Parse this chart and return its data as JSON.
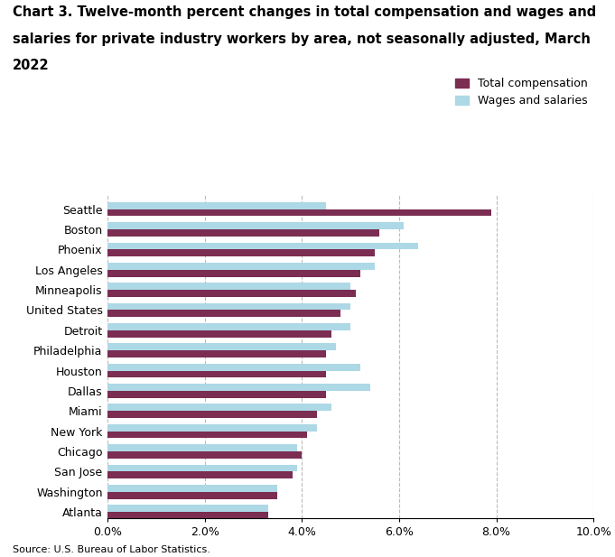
{
  "title_line1": "Chart 3. Twelve-month percent changes in total compensation and wages and",
  "title_line2": "salaries for private industry workers by area, not seasonally adjusted, March",
  "title_line3": "2022",
  "categories": [
    "Seattle",
    "Boston",
    "Phoenix",
    "Los Angeles",
    "Minneapolis",
    "United States",
    "Detroit",
    "Philadelphia",
    "Houston",
    "Dallas",
    "Miami",
    "New York",
    "Chicago",
    "San Jose",
    "Washington",
    "Atlanta"
  ],
  "total_compensation": [
    7.9,
    5.6,
    5.5,
    5.2,
    5.1,
    4.8,
    4.6,
    4.5,
    4.5,
    4.5,
    4.3,
    4.1,
    4.0,
    3.8,
    3.5,
    3.3
  ],
  "wages_and_salaries": [
    4.5,
    6.1,
    6.4,
    5.5,
    5.0,
    5.0,
    5.0,
    4.7,
    5.2,
    5.4,
    4.6,
    4.3,
    3.9,
    3.9,
    3.5,
    3.3
  ],
  "color_compensation": "#7B2D52",
  "color_wages": "#ADD8E6",
  "legend_compensation": "Total compensation",
  "legend_wages": "Wages and salaries",
  "xlim": [
    0,
    10.0
  ],
  "xticks": [
    0,
    2.0,
    4.0,
    6.0,
    8.0,
    10.0
  ],
  "xticklabels": [
    "0.0%",
    "2.0%",
    "4.0%",
    "6.0%",
    "8.0%",
    "10.0%"
  ],
  "source": "Source: U.S. Bureau of Labor Statistics.",
  "title_fontsize": 10.5,
  "axis_fontsize": 9,
  "legend_fontsize": 9,
  "bar_height": 0.35,
  "grid_color": "#bbbbbb"
}
